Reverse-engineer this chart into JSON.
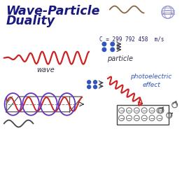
{
  "title_line1": "Wave-Particle",
  "title_line2": "Duality",
  "title_color": "#1a1a7e",
  "bg_color": "#ffffff",
  "wave_color": "#cc2222",
  "em_red": "#cc2222",
  "em_purple": "#6633bb",
  "blue_color": "#3355bb",
  "dark_color": "#333344",
  "gray_color": "#888888",
  "label_wave": "wave",
  "label_particle": "particle",
  "label_photo": "photoelectric\neffect",
  "speed_text": "C = 299 792 458  m/s",
  "figsize": [
    2.6,
    2.8
  ],
  "dpi": 100
}
